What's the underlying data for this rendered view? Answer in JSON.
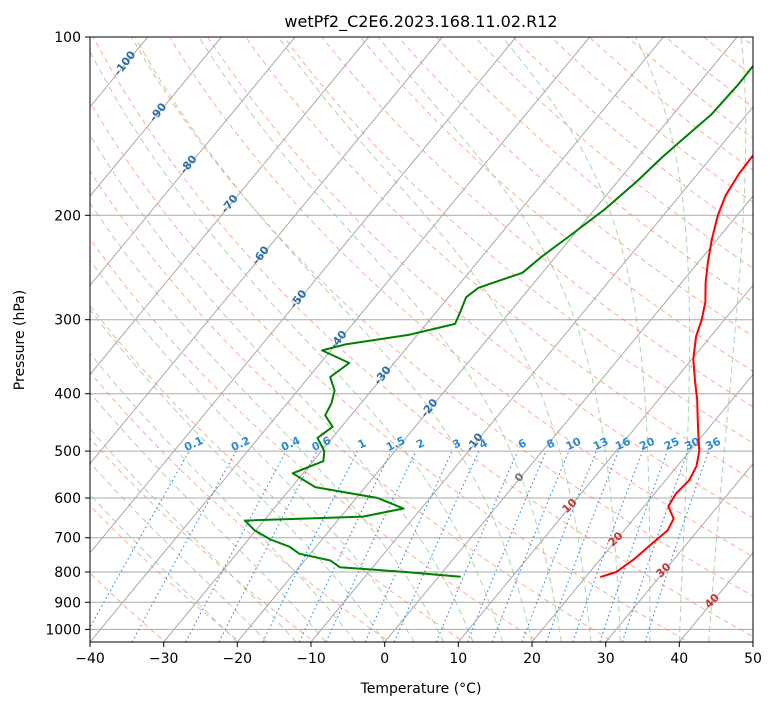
{
  "chart_data": {
    "type": "line",
    "title": "wetPf2_C2E6.2023.168.11.02.R12",
    "xlabel": "Temperature (°C)",
    "ylabel": "Pressure (hPa)",
    "xlim": [
      -40,
      50
    ],
    "ylim": [
      1050,
      100
    ],
    "y_scale": "log",
    "skew": "skew-T",
    "grid": true,
    "x_ticks": [
      -40,
      -30,
      -20,
      -10,
      0,
      10,
      20,
      30,
      40,
      50
    ],
    "y_ticks": [
      1000,
      900,
      800,
      700,
      600,
      500,
      400,
      300,
      200,
      100
    ],
    "series": [
      {
        "color": "#ff0000",
        "points": [
          {
            "p": 816,
            "t": 22.0
          },
          {
            "p": 800,
            "t": 23.6
          },
          {
            "p": 760,
            "t": 24.6
          },
          {
            "p": 720,
            "t": 25.2
          },
          {
            "p": 680,
            "t": 25.9
          },
          {
            "p": 650,
            "t": 25.4
          },
          {
            "p": 620,
            "t": 23.3
          },
          {
            "p": 590,
            "t": 22.9
          },
          {
            "p": 560,
            "t": 23.2
          },
          {
            "p": 530,
            "t": 22.6
          },
          {
            "p": 500,
            "t": 21.3
          },
          {
            "p": 470,
            "t": 19.4
          },
          {
            "p": 440,
            "t": 17.4
          },
          {
            "p": 410,
            "t": 15.3
          },
          {
            "p": 380,
            "t": 12.8
          },
          {
            "p": 350,
            "t": 10.2
          },
          {
            "p": 320,
            "t": 8.0
          },
          {
            "p": 300,
            "t": 6.9
          },
          {
            "p": 280,
            "t": 5.4
          },
          {
            "p": 260,
            "t": 3.3
          },
          {
            "p": 240,
            "t": 1.3
          },
          {
            "p": 220,
            "t": -0.7
          },
          {
            "p": 200,
            "t": -2.6
          },
          {
            "p": 185,
            "t": -3.8
          },
          {
            "p": 170,
            "t": -4.4
          },
          {
            "p": 155,
            "t": -4.6
          },
          {
            "p": 140,
            "t": -4.7
          },
          {
            "p": 130,
            "t": -4.7
          },
          {
            "p": 120,
            "t": -6.0
          },
          {
            "p": 110,
            "t": -8.0
          },
          {
            "p": 100,
            "t": -10.9
          }
        ]
      },
      {
        "color": "#008000",
        "points": [
          {
            "p": 815,
            "t": 3.0
          },
          {
            "p": 800,
            "t": -5.0
          },
          {
            "p": 785,
            "t": -14.5
          },
          {
            "p": 765,
            "t": -16.5
          },
          {
            "p": 745,
            "t": -21.5
          },
          {
            "p": 725,
            "t": -23.6
          },
          {
            "p": 705,
            "t": -27.0
          },
          {
            "p": 680,
            "t": -30.2
          },
          {
            "p": 655,
            "t": -32.6
          },
          {
            "p": 645,
            "t": -17.0
          },
          {
            "p": 625,
            "t": -12.4
          },
          {
            "p": 600,
            "t": -17.1
          },
          {
            "p": 575,
            "t": -26.8
          },
          {
            "p": 545,
            "t": -31.4
          },
          {
            "p": 520,
            "t": -28.6
          },
          {
            "p": 500,
            "t": -29.6
          },
          {
            "p": 475,
            "t": -32.0
          },
          {
            "p": 455,
            "t": -31.2
          },
          {
            "p": 435,
            "t": -33.5
          },
          {
            "p": 415,
            "t": -34.0
          },
          {
            "p": 395,
            "t": -35.0
          },
          {
            "p": 375,
            "t": -37.1
          },
          {
            "p": 355,
            "t": -36.1
          },
          {
            "p": 338,
            "t": -41.2
          },
          {
            "p": 330,
            "t": -38.6
          },
          {
            "p": 318,
            "t": -31.1
          },
          {
            "p": 305,
            "t": -26.1
          },
          {
            "p": 290,
            "t": -26.8
          },
          {
            "p": 275,
            "t": -27.6
          },
          {
            "p": 265,
            "t": -27.0
          },
          {
            "p": 250,
            "t": -22.7
          },
          {
            "p": 235,
            "t": -21.9
          },
          {
            "p": 215,
            "t": -20.3
          },
          {
            "p": 195,
            "t": -18.6
          },
          {
            "p": 175,
            "t": -17.4
          },
          {
            "p": 160,
            "t": -16.7
          },
          {
            "p": 150,
            "t": -16.0
          },
          {
            "p": 135,
            "t": -14.8
          },
          {
            "p": 120,
            "t": -14.5
          },
          {
            "p": 110,
            "t": -14.6
          },
          {
            "p": 100,
            "t": -15.5
          }
        ]
      }
    ],
    "background": {
      "isotherm_color": "#aaaaaa",
      "dry_adiabat_color": "#ff9977",
      "moist_adiabat_color": "#99cc99",
      "mixing_ratio_color": "#3388dd",
      "dry_adiabat_labels": [
        "-100",
        "-90",
        "-80",
        "-70",
        "-60",
        "-50",
        "-40",
        "-30",
        "-20",
        "-10",
        "0",
        "10",
        "20",
        "30",
        "40"
      ],
      "mixing_ratio_labels": [
        "0.1",
        "0.2",
        "0.4",
        "0.6",
        "1",
        "1.5",
        "2",
        "3",
        "4",
        "6",
        "8",
        "10",
        "13",
        "16",
        "20",
        "25",
        "30",
        "36"
      ]
    }
  }
}
